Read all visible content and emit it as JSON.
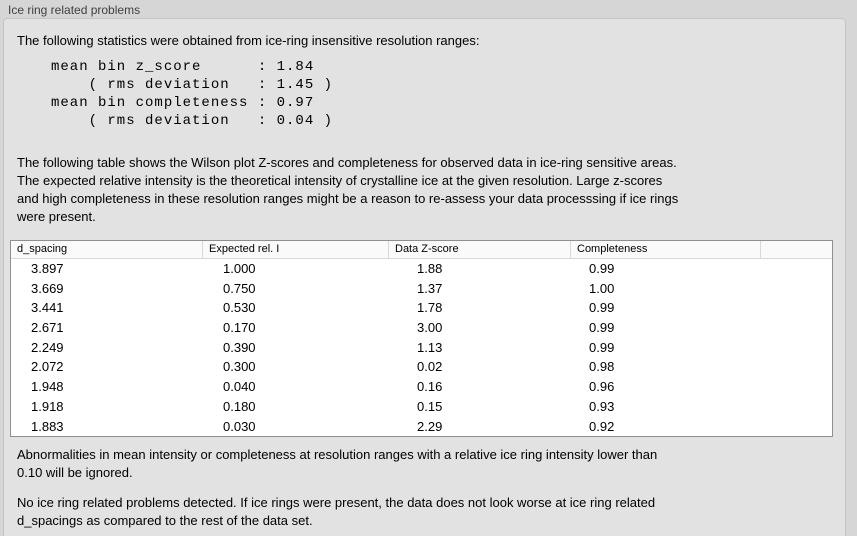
{
  "panel": {
    "title": "Ice ring related problems",
    "intro": "The following statistics were obtained from ice-ring insensitive resolution ranges:",
    "stats_block": "mean bin z_score      : 1.84\n    ( rms deviation   : 1.45 )\nmean bin completeness : 0.97\n    ( rms deviation   : 0.04 )",
    "table_description": "The following table shows the Wilson plot Z-scores and completeness for observed data in ice-ring sensitive areas.\nThe expected relative intensity is the theoretical intensity of crystalline ice at the given resolution. Large z-scores\nand high completeness in these resolution ranges might be a reason to re-assess your data processsing if ice rings\nwere present.",
    "note_ignore": "Abnormalities in mean intensity or completeness at resolution ranges with a relative ice ring intensity lower than\n0.10 will be ignored.",
    "conclusion": "No ice ring related problems detected. If ice rings were present, the data does not look worse at ice ring related\nd_spacings as compared to the rest of the data set."
  },
  "table": {
    "columns": [
      "d_spacing",
      "Expected rel. I",
      "Data Z-score",
      "Completeness"
    ],
    "rows": [
      [
        "3.897",
        "1.000",
        "1.88",
        "0.99"
      ],
      [
        "3.669",
        "0.750",
        "1.37",
        "1.00"
      ],
      [
        "3.441",
        "0.530",
        "1.78",
        "0.99"
      ],
      [
        "2.671",
        "0.170",
        "3.00",
        "0.99"
      ],
      [
        "2.249",
        "0.390",
        "1.13",
        "0.99"
      ],
      [
        "2.072",
        "0.300",
        "0.02",
        "0.98"
      ],
      [
        "1.948",
        "0.040",
        "0.16",
        "0.96"
      ],
      [
        "1.918",
        "0.180",
        "0.15",
        "0.93"
      ],
      [
        "1.883",
        "0.030",
        "2.29",
        "0.92"
      ]
    ]
  },
  "colors": {
    "window_bg": "#d6d6d6",
    "panel_bg": "#e2e2e2",
    "panel_border": "#c4c4c4",
    "table_bg": "#ffffff",
    "table_border": "#8f8f8f",
    "header_bg": "#fafafa",
    "header_separator": "#d8d8d8",
    "text": "#000000"
  }
}
